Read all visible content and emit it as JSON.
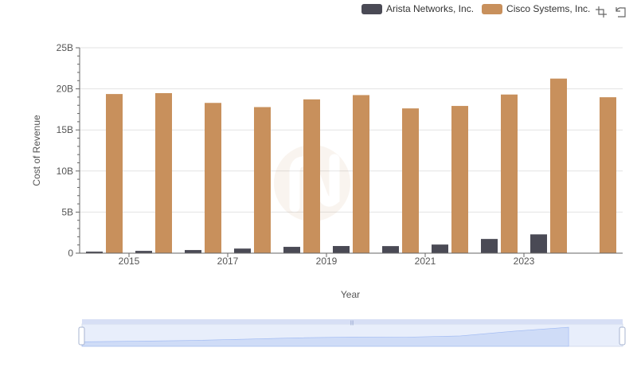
{
  "chart_data": {
    "type": "bar",
    "categories": [
      "2014",
      "2015",
      "2016",
      "2017",
      "2018",
      "2019",
      "2020",
      "2021",
      "2022",
      "2023",
      "2024"
    ],
    "x_tick_labels": [
      "2015",
      "2017",
      "2019",
      "2021",
      "2023"
    ],
    "series": [
      {
        "name": "Arista Networks, Inc.",
        "color": "#4a4a55",
        "values": [
          0.19,
          0.28,
          0.38,
          0.56,
          0.77,
          0.87,
          0.86,
          1.05,
          1.73,
          2.29,
          null
        ]
      },
      {
        "name": "Cisco Systems, Inc.",
        "color": "#c8905c",
        "values": [
          19.37,
          19.48,
          18.29,
          17.78,
          18.72,
          19.24,
          17.62,
          17.92,
          19.31,
          21.25,
          18.98
        ]
      }
    ],
    "xlabel": "Year",
    "ylabel": "Cost of Revenue",
    "ylim": [
      0,
      25
    ],
    "y_ticks": [
      0,
      5,
      10,
      15,
      20,
      25
    ],
    "y_tick_labels": [
      "0",
      "5B",
      "10B",
      "15B",
      "20B",
      "25B"
    ],
    "grid": true,
    "legend_position": "top-right"
  },
  "legend": {
    "items": [
      {
        "label": "Arista Networks, Inc.",
        "color": "#4a4a55"
      },
      {
        "label": "Cisco Systems, Inc.",
        "color": "#c8905c"
      }
    ]
  },
  "toolbar": {
    "icons": [
      "zoom-icon",
      "reset-zoom-icon"
    ]
  }
}
